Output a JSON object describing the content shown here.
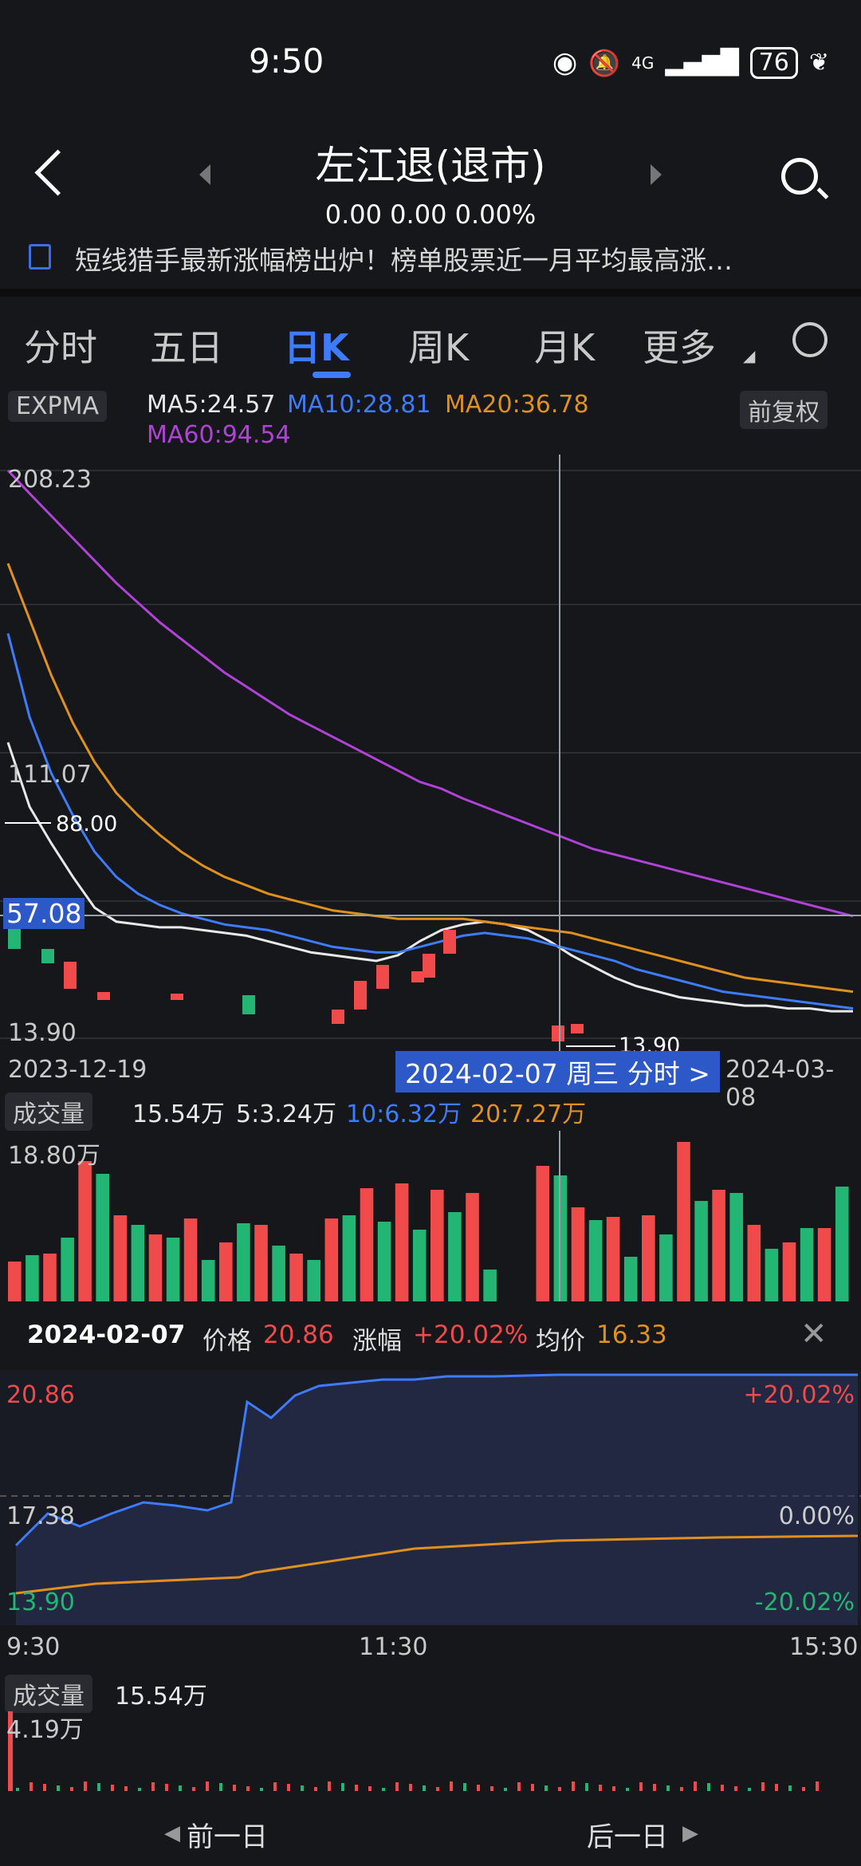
{
  "status": {
    "time": "9:50",
    "battery": "76",
    "network": "4G"
  },
  "header": {
    "title": "左江退(退市)",
    "quote": "0.00  0.00  0.00%"
  },
  "news": {
    "text": "短线猎手最新涨幅榜出炉！榜单股票近一月平均最高涨…"
  },
  "tabs": [
    {
      "label": "分时"
    },
    {
      "label": "五日"
    },
    {
      "label": "日K"
    },
    {
      "label": "周K"
    },
    {
      "label": "月K"
    },
    {
      "label": "更多"
    }
  ],
  "indicator": {
    "selector": "EXPMA",
    "adjust": "前复权",
    "ma5": "MA5:24.57",
    "ma10": "MA10:28.81",
    "ma20": "MA20:36.78",
    "ma60": "MA60:94.54",
    "colors": {
      "ma5": "#e8e8e8",
      "ma10": "#3d7bff",
      "ma20": "#e0901c",
      "ma60": "#b042d8"
    }
  },
  "kchart": {
    "top_price": "208.23",
    "mid_price": "111.07",
    "low_price": "13.90",
    "crosshair_price": "57.08",
    "marker_high": "88.00",
    "marker_low": "13.90",
    "date_start": "2023-12-19",
    "date_end": "2024-03-08",
    "crosshair_date": "2024-02-07 周三 分时 >"
  },
  "volume": {
    "selector": "成交量",
    "value": "15.54万",
    "ma5": "5:3.24万",
    "ma10": "10:6.32万",
    "ma20": "20:7.27万",
    "max": "18.80万"
  },
  "intraday": {
    "date": "2024-02-07",
    "price_label": "价格",
    "price": "20.86",
    "change_label": "涨幅",
    "change": "+20.02%",
    "avg_label": "均价",
    "avg": "16.33",
    "high": "20.86",
    "mid": "17.38",
    "low": "13.90",
    "pct_high": "+20.02%",
    "pct_mid": "0.00%",
    "pct_low": "-20.02%",
    "t_start": "9:30",
    "t_mid": "11:30",
    "t_end": "15:30",
    "vol_label": "成交量",
    "vol_value": "15.54万",
    "vol_max": "4.19万"
  },
  "footer": {
    "prev": "前一日",
    "next": "后一日"
  },
  "chart_data": {
    "type": "candlestick",
    "x_range": [
      "2023-12-19",
      "2024-03-08"
    ],
    "ylim": [
      13.9,
      208.23
    ],
    "series": [
      {
        "name": "MA5",
        "values": [
          111.07,
          88,
          75,
          63,
          52,
          47,
          46,
          45,
          45,
          44,
          43,
          42,
          40,
          38,
          36,
          35,
          34,
          33,
          35,
          40,
          44,
          46,
          47,
          46,
          44,
          40,
          35,
          31,
          27,
          24,
          22,
          20,
          19,
          18,
          17,
          17,
          16,
          16,
          15,
          15
        ]
      },
      {
        "name": "MA10",
        "values": [
          150,
          120,
          100,
          85,
          72,
          63,
          57,
          53,
          50,
          48,
          46,
          45,
          44,
          42,
          40,
          38,
          37,
          36,
          36,
          38,
          40,
          42,
          43,
          42,
          41,
          39,
          37,
          35,
          33,
          30,
          28,
          26,
          24,
          22,
          21,
          20,
          19,
          18,
          17,
          16
        ]
      },
      {
        "name": "MA20",
        "values": [
          175,
          155,
          135,
          118,
          104,
          93,
          85,
          78,
          72,
          67,
          63,
          60,
          57,
          55,
          53,
          51,
          50,
          49,
          48,
          48,
          48,
          48,
          47,
          46,
          45,
          44,
          43,
          41,
          39,
          37,
          35,
          33,
          31,
          29,
          27,
          26,
          25,
          24,
          23,
          22
        ]
      },
      {
        "name": "MA60",
        "values": [
          208.23,
          200,
          192,
          184,
          176,
          168,
          161,
          154,
          148,
          142,
          136,
          131,
          126,
          121,
          117,
          113,
          109,
          105,
          101,
          97,
          94.54,
          91,
          88,
          85,
          82,
          79,
          76,
          73,
          71,
          69,
          67,
          65,
          63,
          61,
          59,
          57,
          55,
          53,
          51,
          49
        ]
      }
    ]
  }
}
